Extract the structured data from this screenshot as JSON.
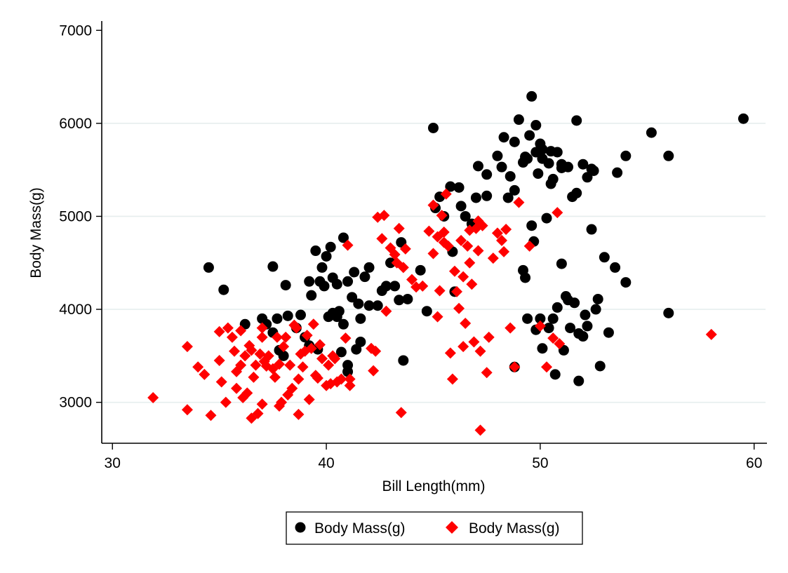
{
  "chart_data": {
    "type": "scatter",
    "title": "",
    "xlabel": "Bill Length(mm)",
    "ylabel": "Body Mass(g)",
    "xlim": [
      29.5,
      60.6
    ],
    "ylim": [
      2560,
      7100
    ],
    "xticks": [
      30,
      40,
      50,
      60
    ],
    "yticks": [
      3000,
      4000,
      5000,
      6000,
      7000
    ],
    "grid": "horizontal",
    "legend_position": "bottom",
    "series": [
      {
        "name": "Body Mass(g)",
        "marker": "circle",
        "color": "#000000",
        "points": [
          [
            34.5,
            4450
          ],
          [
            35.2,
            4210
          ],
          [
            36.2,
            3840
          ],
          [
            37.0,
            3900
          ],
          [
            37.2,
            3840
          ],
          [
            37.5,
            3750
          ],
          [
            37.5,
            4460
          ],
          [
            37.7,
            3900
          ],
          [
            37.8,
            3560
          ],
          [
            38.0,
            3500
          ],
          [
            38.1,
            4260
          ],
          [
            38.2,
            3930
          ],
          [
            38.6,
            3800
          ],
          [
            38.8,
            3940
          ],
          [
            39.0,
            3700
          ],
          [
            39.2,
            4300
          ],
          [
            39.2,
            3610
          ],
          [
            39.3,
            4150
          ],
          [
            39.5,
            4630
          ],
          [
            39.6,
            3570
          ],
          [
            39.7,
            4300
          ],
          [
            39.8,
            4450
          ],
          [
            39.9,
            4250
          ],
          [
            40.0,
            4570
          ],
          [
            40.1,
            3920
          ],
          [
            40.2,
            4670
          ],
          [
            40.3,
            4340
          ],
          [
            40.3,
            3960
          ],
          [
            40.5,
            4270
          ],
          [
            40.5,
            3920
          ],
          [
            40.6,
            3980
          ],
          [
            40.7,
            3540
          ],
          [
            40.8,
            3840
          ],
          [
            40.8,
            4770
          ],
          [
            41.0,
            3330
          ],
          [
            41.0,
            3400
          ],
          [
            41.0,
            4300
          ],
          [
            41.2,
            4130
          ],
          [
            41.3,
            4400
          ],
          [
            41.4,
            3570
          ],
          [
            41.5,
            4060
          ],
          [
            41.6,
            3900
          ],
          [
            41.6,
            3650
          ],
          [
            41.8,
            4350
          ],
          [
            42.0,
            4040
          ],
          [
            42.0,
            4450
          ],
          [
            42.4,
            4040
          ],
          [
            42.6,
            4200
          ],
          [
            42.8,
            4250
          ],
          [
            43.0,
            4500
          ],
          [
            43.2,
            4250
          ],
          [
            43.4,
            4100
          ],
          [
            43.5,
            4720
          ],
          [
            43.6,
            3450
          ],
          [
            43.8,
            4110
          ],
          [
            44.4,
            4420
          ],
          [
            44.7,
            3980
          ],
          [
            45.0,
            5950
          ],
          [
            45.1,
            5090
          ],
          [
            45.3,
            5210
          ],
          [
            45.5,
            5000
          ],
          [
            45.8,
            5320
          ],
          [
            45.9,
            4620
          ],
          [
            46.0,
            4190
          ],
          [
            46.2,
            5310
          ],
          [
            46.3,
            5110
          ],
          [
            46.5,
            5000
          ],
          [
            46.8,
            4920
          ],
          [
            47.0,
            5200
          ],
          [
            47.1,
            5540
          ],
          [
            47.5,
            5220
          ],
          [
            47.5,
            5450
          ],
          [
            48.0,
            5650
          ],
          [
            48.2,
            5530
          ],
          [
            48.3,
            5850
          ],
          [
            48.5,
            5200
          ],
          [
            48.6,
            5430
          ],
          [
            48.8,
            5800
          ],
          [
            48.8,
            5280
          ],
          [
            49.0,
            6040
          ],
          [
            49.2,
            5580
          ],
          [
            49.3,
            5640
          ],
          [
            49.4,
            5620
          ],
          [
            49.5,
            5870
          ],
          [
            49.6,
            6290
          ],
          [
            49.8,
            5980
          ],
          [
            49.8,
            5690
          ],
          [
            49.9,
            5460
          ],
          [
            50.0,
            5780
          ],
          [
            50.1,
            5720
          ],
          [
            50.1,
            5620
          ],
          [
            50.4,
            5570
          ],
          [
            50.5,
            5700
          ],
          [
            50.5,
            5350
          ],
          [
            50.6,
            5400
          ],
          [
            50.8,
            5690
          ],
          [
            51.0,
            5520
          ],
          [
            51.0,
            5560
          ],
          [
            51.3,
            5530
          ],
          [
            51.5,
            5210
          ],
          [
            51.7,
            5250
          ],
          [
            51.7,
            6030
          ],
          [
            52.0,
            5560
          ],
          [
            52.2,
            5420
          ],
          [
            52.4,
            5510
          ],
          [
            52.5,
            5490
          ],
          [
            53.6,
            5470
          ],
          [
            54.0,
            5650
          ],
          [
            55.2,
            5900
          ],
          [
            56.0,
            5650
          ],
          [
            59.5,
            6050
          ],
          [
            48.8,
            3380
          ],
          [
            49.2,
            4420
          ],
          [
            49.3,
            4340
          ],
          [
            49.4,
            3900
          ],
          [
            49.6,
            4900
          ],
          [
            49.7,
            4730
          ],
          [
            49.8,
            3780
          ],
          [
            50.0,
            3900
          ],
          [
            50.1,
            3580
          ],
          [
            50.3,
            4980
          ],
          [
            50.4,
            3800
          ],
          [
            50.6,
            3900
          ],
          [
            50.7,
            3300
          ],
          [
            50.8,
            4020
          ],
          [
            51.0,
            4490
          ],
          [
            51.1,
            3560
          ],
          [
            51.2,
            4140
          ],
          [
            51.3,
            4100
          ],
          [
            51.4,
            3800
          ],
          [
            51.6,
            4070
          ],
          [
            51.8,
            3740
          ],
          [
            52.0,
            3710
          ],
          [
            52.1,
            3940
          ],
          [
            52.2,
            3820
          ],
          [
            52.4,
            4860
          ],
          [
            52.6,
            4000
          ],
          [
            52.7,
            4110
          ],
          [
            52.8,
            3390
          ],
          [
            51.8,
            3230
          ],
          [
            53.0,
            4560
          ],
          [
            53.2,
            3750
          ],
          [
            53.5,
            4450
          ],
          [
            54.0,
            4290
          ],
          [
            56.0,
            3960
          ]
        ]
      },
      {
        "name": "Body Mass(g)",
        "marker": "diamond",
        "color": "#ff0000",
        "points": [
          [
            31.9,
            3050
          ],
          [
            33.5,
            3600
          ],
          [
            33.5,
            2920
          ],
          [
            34.0,
            3380
          ],
          [
            34.3,
            3300
          ],
          [
            34.6,
            2860
          ],
          [
            35.0,
            3760
          ],
          [
            35.0,
            3450
          ],
          [
            35.1,
            3220
          ],
          [
            35.3,
            3000
          ],
          [
            35.4,
            3800
          ],
          [
            35.6,
            3700
          ],
          [
            35.7,
            3550
          ],
          [
            35.8,
            3330
          ],
          [
            35.8,
            3150
          ],
          [
            36.0,
            3770
          ],
          [
            36.0,
            3400
          ],
          [
            36.1,
            3050
          ],
          [
            36.2,
            3500
          ],
          [
            36.3,
            3100
          ],
          [
            36.4,
            3610
          ],
          [
            36.5,
            3560
          ],
          [
            36.5,
            2830
          ],
          [
            36.6,
            3270
          ],
          [
            36.7,
            3400
          ],
          [
            36.8,
            2880
          ],
          [
            36.9,
            3520
          ],
          [
            37.0,
            3800
          ],
          [
            37.0,
            3700
          ],
          [
            37.0,
            2980
          ],
          [
            37.1,
            3440
          ],
          [
            37.2,
            3390
          ],
          [
            37.3,
            3500
          ],
          [
            37.5,
            3360
          ],
          [
            37.6,
            3270
          ],
          [
            37.7,
            3700
          ],
          [
            37.8,
            3410
          ],
          [
            37.8,
            2960
          ],
          [
            37.9,
            3000
          ],
          [
            38.0,
            3600
          ],
          [
            38.1,
            3700
          ],
          [
            38.2,
            3080
          ],
          [
            38.3,
            3400
          ],
          [
            38.4,
            3150
          ],
          [
            38.5,
            3830
          ],
          [
            38.6,
            3800
          ],
          [
            38.7,
            3250
          ],
          [
            38.7,
            2870
          ],
          [
            38.8,
            3520
          ],
          [
            38.9,
            3380
          ],
          [
            39.0,
            3550
          ],
          [
            39.1,
            3720
          ],
          [
            39.2,
            3030
          ],
          [
            39.3,
            3580
          ],
          [
            39.4,
            3840
          ],
          [
            39.5,
            3290
          ],
          [
            39.6,
            3260
          ],
          [
            39.7,
            3620
          ],
          [
            39.8,
            3470
          ],
          [
            40.0,
            3180
          ],
          [
            40.1,
            3400
          ],
          [
            40.2,
            3200
          ],
          [
            40.3,
            3500
          ],
          [
            40.4,
            3470
          ],
          [
            40.5,
            3220
          ],
          [
            40.7,
            3250
          ],
          [
            40.9,
            3690
          ],
          [
            41.0,
            4690
          ],
          [
            41.1,
            3180
          ],
          [
            41.1,
            3250
          ],
          [
            42.1,
            3580
          ],
          [
            42.2,
            3340
          ],
          [
            42.3,
            3550
          ],
          [
            42.4,
            4990
          ],
          [
            42.6,
            4760
          ],
          [
            42.7,
            5010
          ],
          [
            42.8,
            3980
          ],
          [
            43.0,
            4660
          ],
          [
            43.2,
            4590
          ],
          [
            43.3,
            4500
          ],
          [
            43.4,
            4870
          ],
          [
            43.5,
            2890
          ],
          [
            43.6,
            4450
          ],
          [
            43.7,
            4650
          ],
          [
            44.0,
            4320
          ],
          [
            44.2,
            4240
          ],
          [
            44.8,
            4840
          ],
          [
            45.0,
            5120
          ],
          [
            45.2,
            4780
          ],
          [
            45.2,
            3920
          ],
          [
            45.4,
            5010
          ],
          [
            45.5,
            4830
          ],
          [
            45.6,
            5240
          ],
          [
            45.7,
            4680
          ],
          [
            45.8,
            3530
          ],
          [
            45.9,
            3250
          ],
          [
            46.0,
            4410
          ],
          [
            46.1,
            4190
          ],
          [
            46.2,
            4010
          ],
          [
            46.3,
            4740
          ],
          [
            46.4,
            3600
          ],
          [
            46.5,
            3850
          ],
          [
            46.6,
            4680
          ],
          [
            46.7,
            4850
          ],
          [
            46.8,
            4270
          ],
          [
            46.9,
            3650
          ],
          [
            47.0,
            4870
          ],
          [
            47.1,
            4630
          ],
          [
            47.2,
            3550
          ],
          [
            47.3,
            4900
          ],
          [
            47.5,
            3320
          ],
          [
            47.6,
            3700
          ],
          [
            47.8,
            4550
          ],
          [
            48.0,
            4820
          ],
          [
            48.2,
            4740
          ],
          [
            48.3,
            4620
          ],
          [
            48.4,
            4860
          ],
          [
            48.6,
            3800
          ],
          [
            48.8,
            3380
          ],
          [
            49.0,
            5150
          ],
          [
            49.5,
            4680
          ],
          [
            50.0,
            3820
          ],
          [
            50.3,
            3380
          ],
          [
            50.6,
            3690
          ],
          [
            50.8,
            5040
          ],
          [
            50.9,
            3630
          ],
          [
            58.0,
            3730
          ],
          [
            47.2,
            2700
          ],
          [
            46.4,
            4350
          ],
          [
            47.1,
            4950
          ],
          [
            46.7,
            4500
          ],
          [
            45.3,
            4200
          ],
          [
            44.5,
            4250
          ],
          [
            45.0,
            4600
          ],
          [
            45.5,
            4720
          ]
        ]
      }
    ]
  }
}
